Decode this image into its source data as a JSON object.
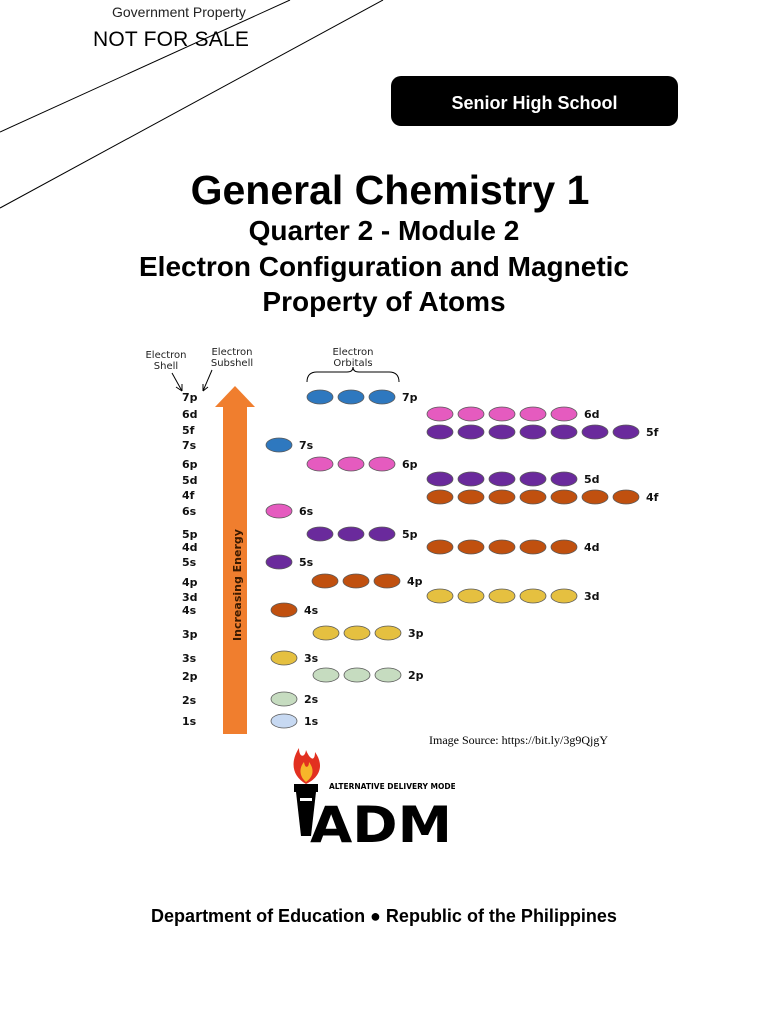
{
  "header": {
    "government_property": "Government Property",
    "not_for_sale": "NOT FOR SALE",
    "badge": "Senior High School"
  },
  "cover": {
    "title": "General Chemistry 1",
    "subtitle": "Quarter 2 - Module 2",
    "topic_line1": "Electron Configuration and Magnetic",
    "topic_line2": "Property of Atoms"
  },
  "figure": {
    "label_shell": [
      "Electron",
      "Shell"
    ],
    "label_subshell": [
      "Electron",
      "Subshell"
    ],
    "label_orbitals": [
      "Electron",
      "Orbitals"
    ],
    "arrow_label": "Increasing Energy",
    "levels": [
      "7p",
      "6d",
      "5f",
      "7s",
      "6p",
      "5d",
      "4f",
      "6s",
      "5p",
      "4d",
      "5s",
      "4p",
      "3d",
      "4s",
      "3p",
      "3s",
      "2p",
      "2s",
      "1s"
    ],
    "orbital_rows": [
      {
        "label": "7p",
        "count": 3,
        "color": "#2e78bf"
      },
      {
        "label": "6d",
        "count": 5,
        "color": "#e55bbf"
      },
      {
        "label": "5f",
        "count": 7,
        "color": "#6a2a9c"
      },
      {
        "label": "7s",
        "count": 1,
        "color": "#2e78bf"
      },
      {
        "label": "6p",
        "count": 3,
        "color": "#e55bbf"
      },
      {
        "label": "5d",
        "count": 5,
        "color": "#6a2a9c"
      },
      {
        "label": "4f",
        "count": 7,
        "color": "#c0500f"
      },
      {
        "label": "6s",
        "count": 1,
        "color": "#e55bbf"
      },
      {
        "label": "5p",
        "count": 3,
        "color": "#6a2a9c"
      },
      {
        "label": "4d",
        "count": 5,
        "color": "#c0500f"
      },
      {
        "label": "5s",
        "count": 1,
        "color": "#6a2a9c"
      },
      {
        "label": "4p",
        "count": 3,
        "color": "#c0500f"
      },
      {
        "label": "3d",
        "count": 5,
        "color": "#e5c040"
      },
      {
        "label": "4s",
        "count": 1,
        "color": "#c0500f"
      },
      {
        "label": "3p",
        "count": 3,
        "color": "#e5c040"
      },
      {
        "label": "3s",
        "count": 1,
        "color": "#e5c040"
      },
      {
        "label": "2p",
        "count": 3,
        "color": "#c6dcc0"
      },
      {
        "label": "2s",
        "count": 1,
        "color": "#c6dcc0"
      },
      {
        "label": "1s",
        "count": 1,
        "color": "#c7d9f2"
      }
    ],
    "arrow_color": "#f07e2e",
    "source": "Image Source: https://bit.ly/3g9QjgY"
  },
  "logo": {
    "tagline": "ALTERNATIVE DELIVERY MODE",
    "wordmark": "ADM"
  },
  "footer": {
    "text": "Department of Education ● Republic of the Philippines"
  }
}
